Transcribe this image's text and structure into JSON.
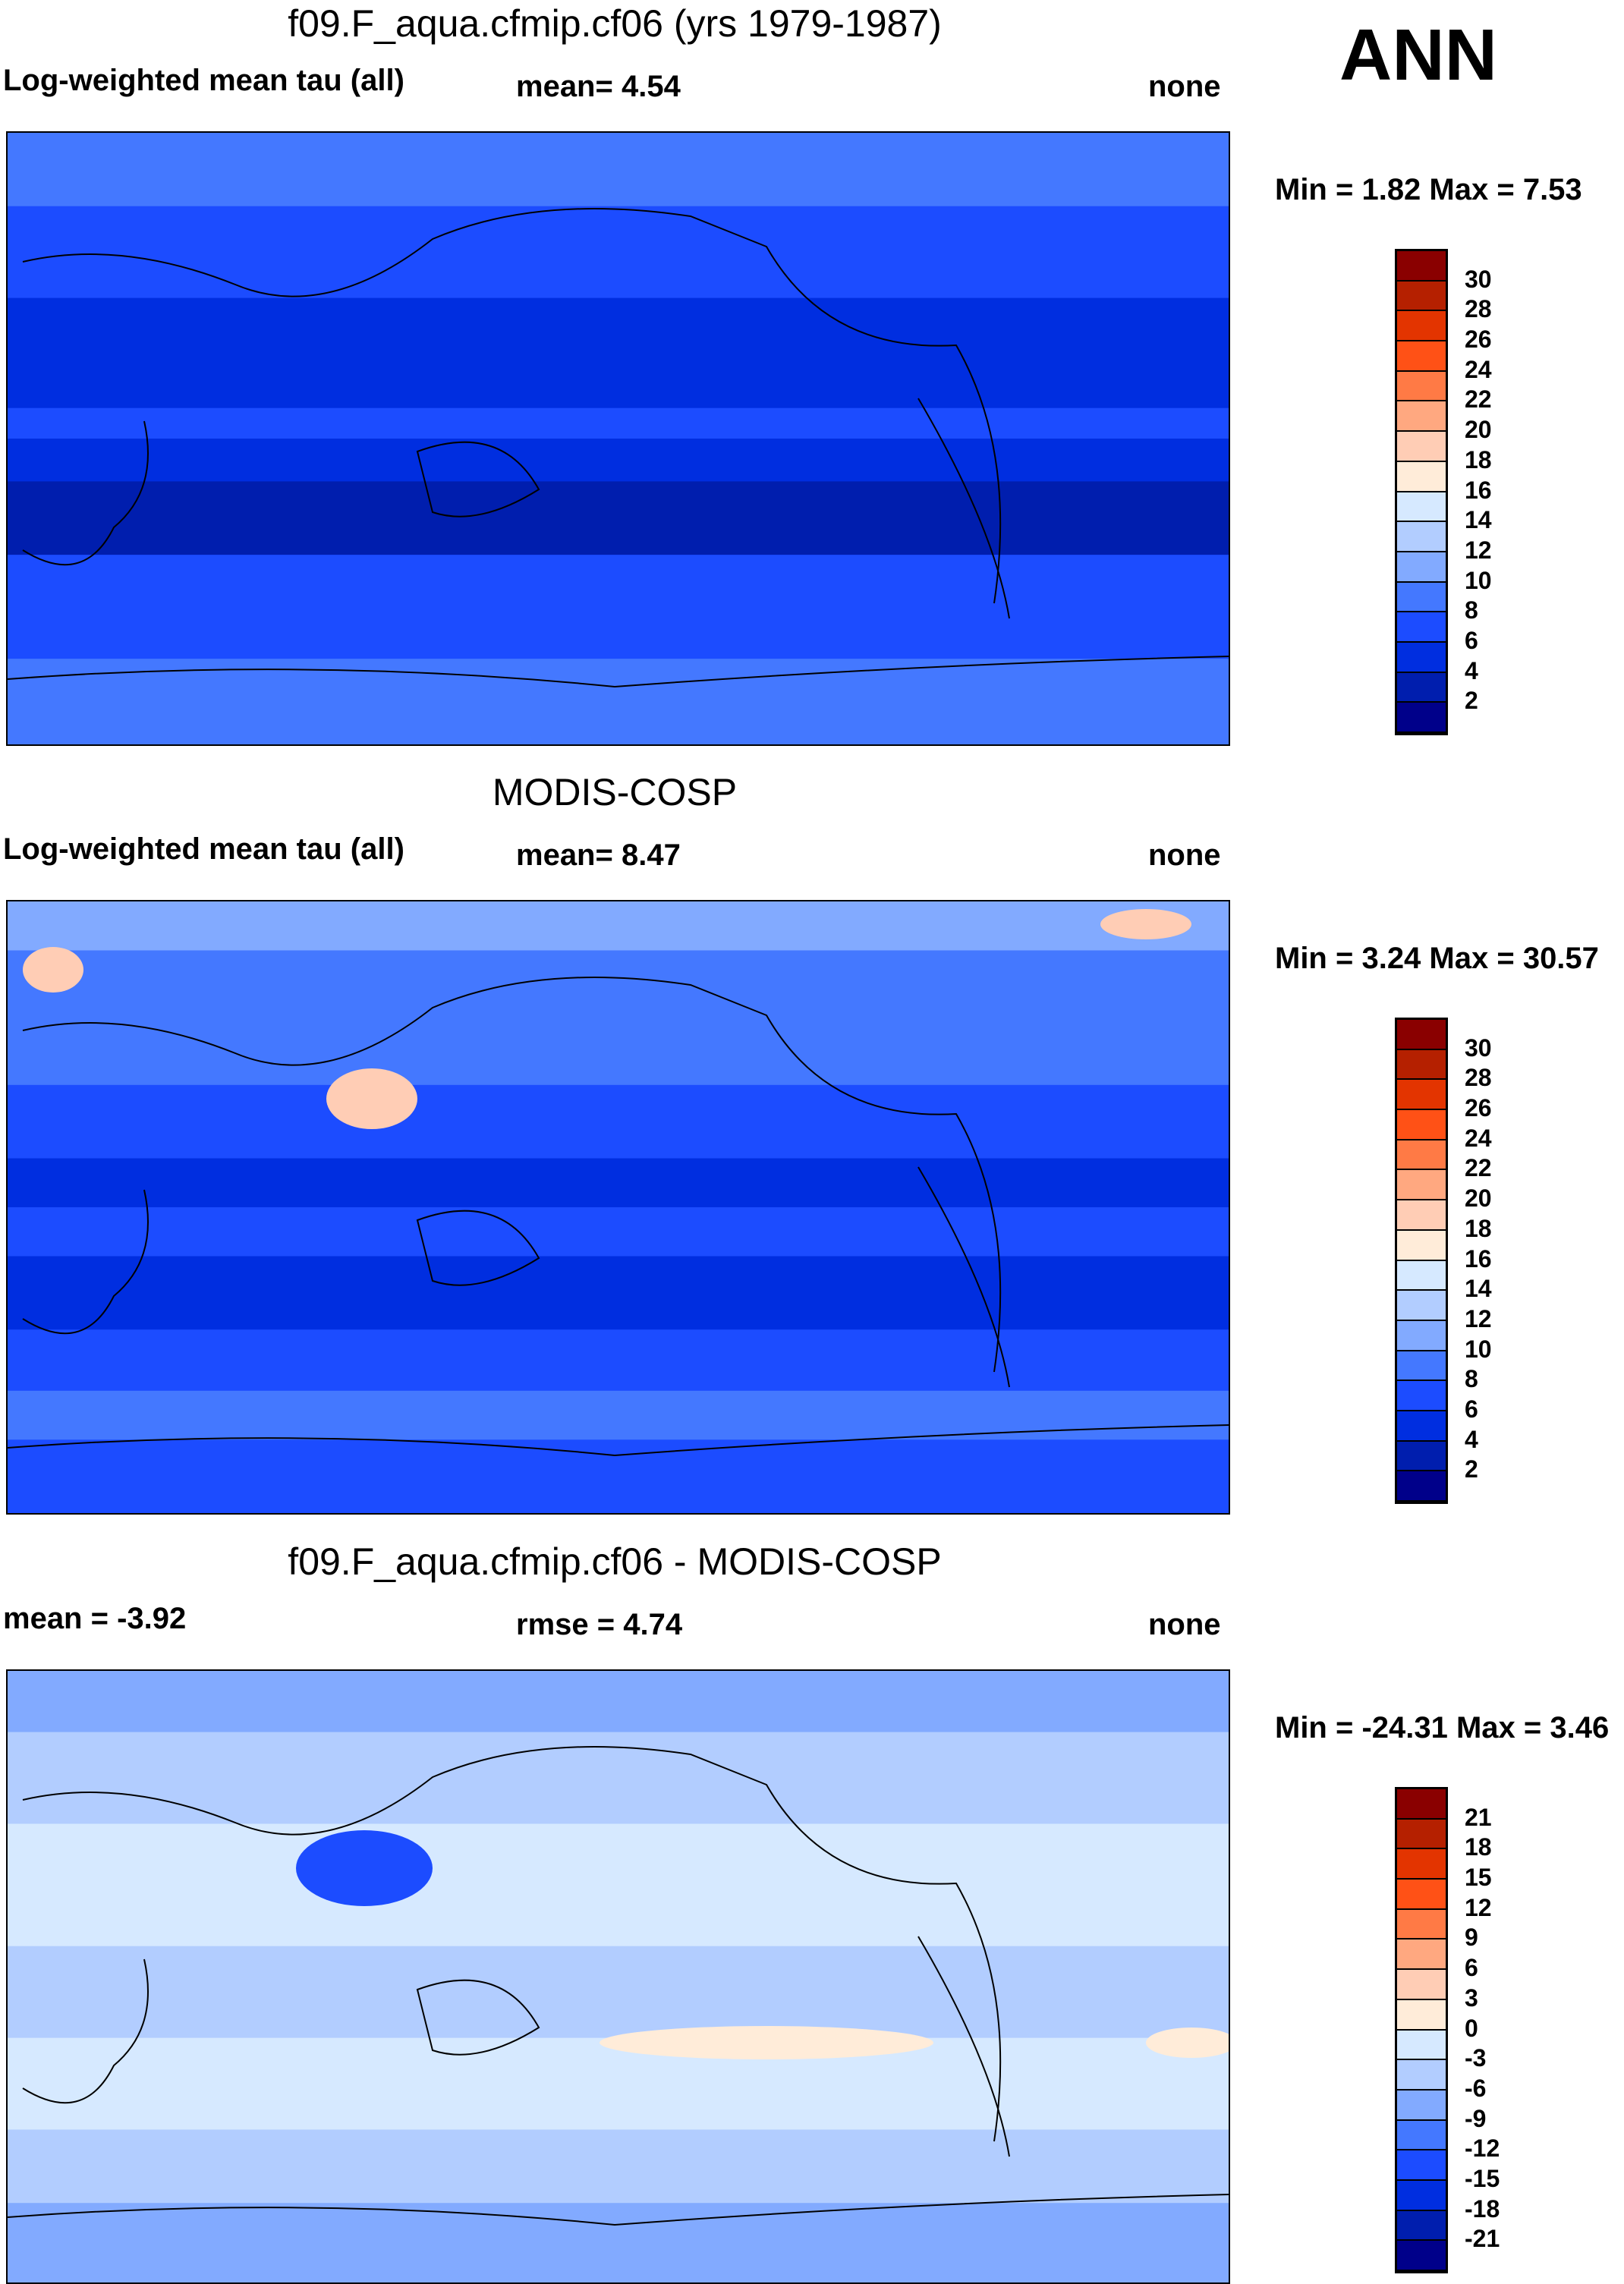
{
  "season": "ANN",
  "colors_main": [
    "#8a0000",
    "#b52000",
    "#e33400",
    "#ff5116",
    "#ff7a45",
    "#ffa880",
    "#ffcdb5",
    "#ffecd9",
    "#d6e9ff",
    "#b2cdff",
    "#82aaff",
    "#4478ff",
    "#1c4cff",
    "#002ee0",
    "#001eae",
    "#00008a"
  ],
  "chart_data": [
    {
      "type": "heatmap",
      "title": "f09.F_aqua.cfmip.cf06 (yrs 1979-1987)",
      "left": "Log-weighted mean tau (all)",
      "center": "mean=   4.54",
      "right": "none",
      "minmax": "Min =   1.82 Max =   7.53",
      "levels": [
        "30",
        "28",
        "26",
        "24",
        "22",
        "20",
        "18",
        "16",
        "14",
        "12",
        "10",
        "8",
        "6",
        "4",
        "2"
      ],
      "min": 1.82,
      "max": 7.53,
      "mean": 4.54
    },
    {
      "type": "heatmap",
      "title": "MODIS-COSP",
      "left": "Log-weighted mean tau (all)",
      "center": "mean=   8.47",
      "right": "none",
      "minmax": "Min =   3.24 Max =  30.57",
      "levels": [
        "30",
        "28",
        "26",
        "24",
        "22",
        "20",
        "18",
        "16",
        "14",
        "12",
        "10",
        "8",
        "6",
        "4",
        "2"
      ],
      "min": 3.24,
      "max": 30.57,
      "mean": 8.47
    },
    {
      "type": "heatmap",
      "title": "f09.F_aqua.cfmip.cf06 - MODIS-COSP",
      "left": "mean =  -3.92",
      "center": "rmse =   4.74",
      "right": "none",
      "minmax": "Min = -24.31 Max =   3.46",
      "levels": [
        "21",
        "18",
        "15",
        "12",
        "9",
        "6",
        "3",
        "0",
        "-3",
        "-6",
        "-9",
        "-12",
        "-15",
        "-18",
        "-21"
      ],
      "min": -24.31,
      "max": 3.46,
      "mean": -3.92,
      "rmse": 4.74
    }
  ]
}
